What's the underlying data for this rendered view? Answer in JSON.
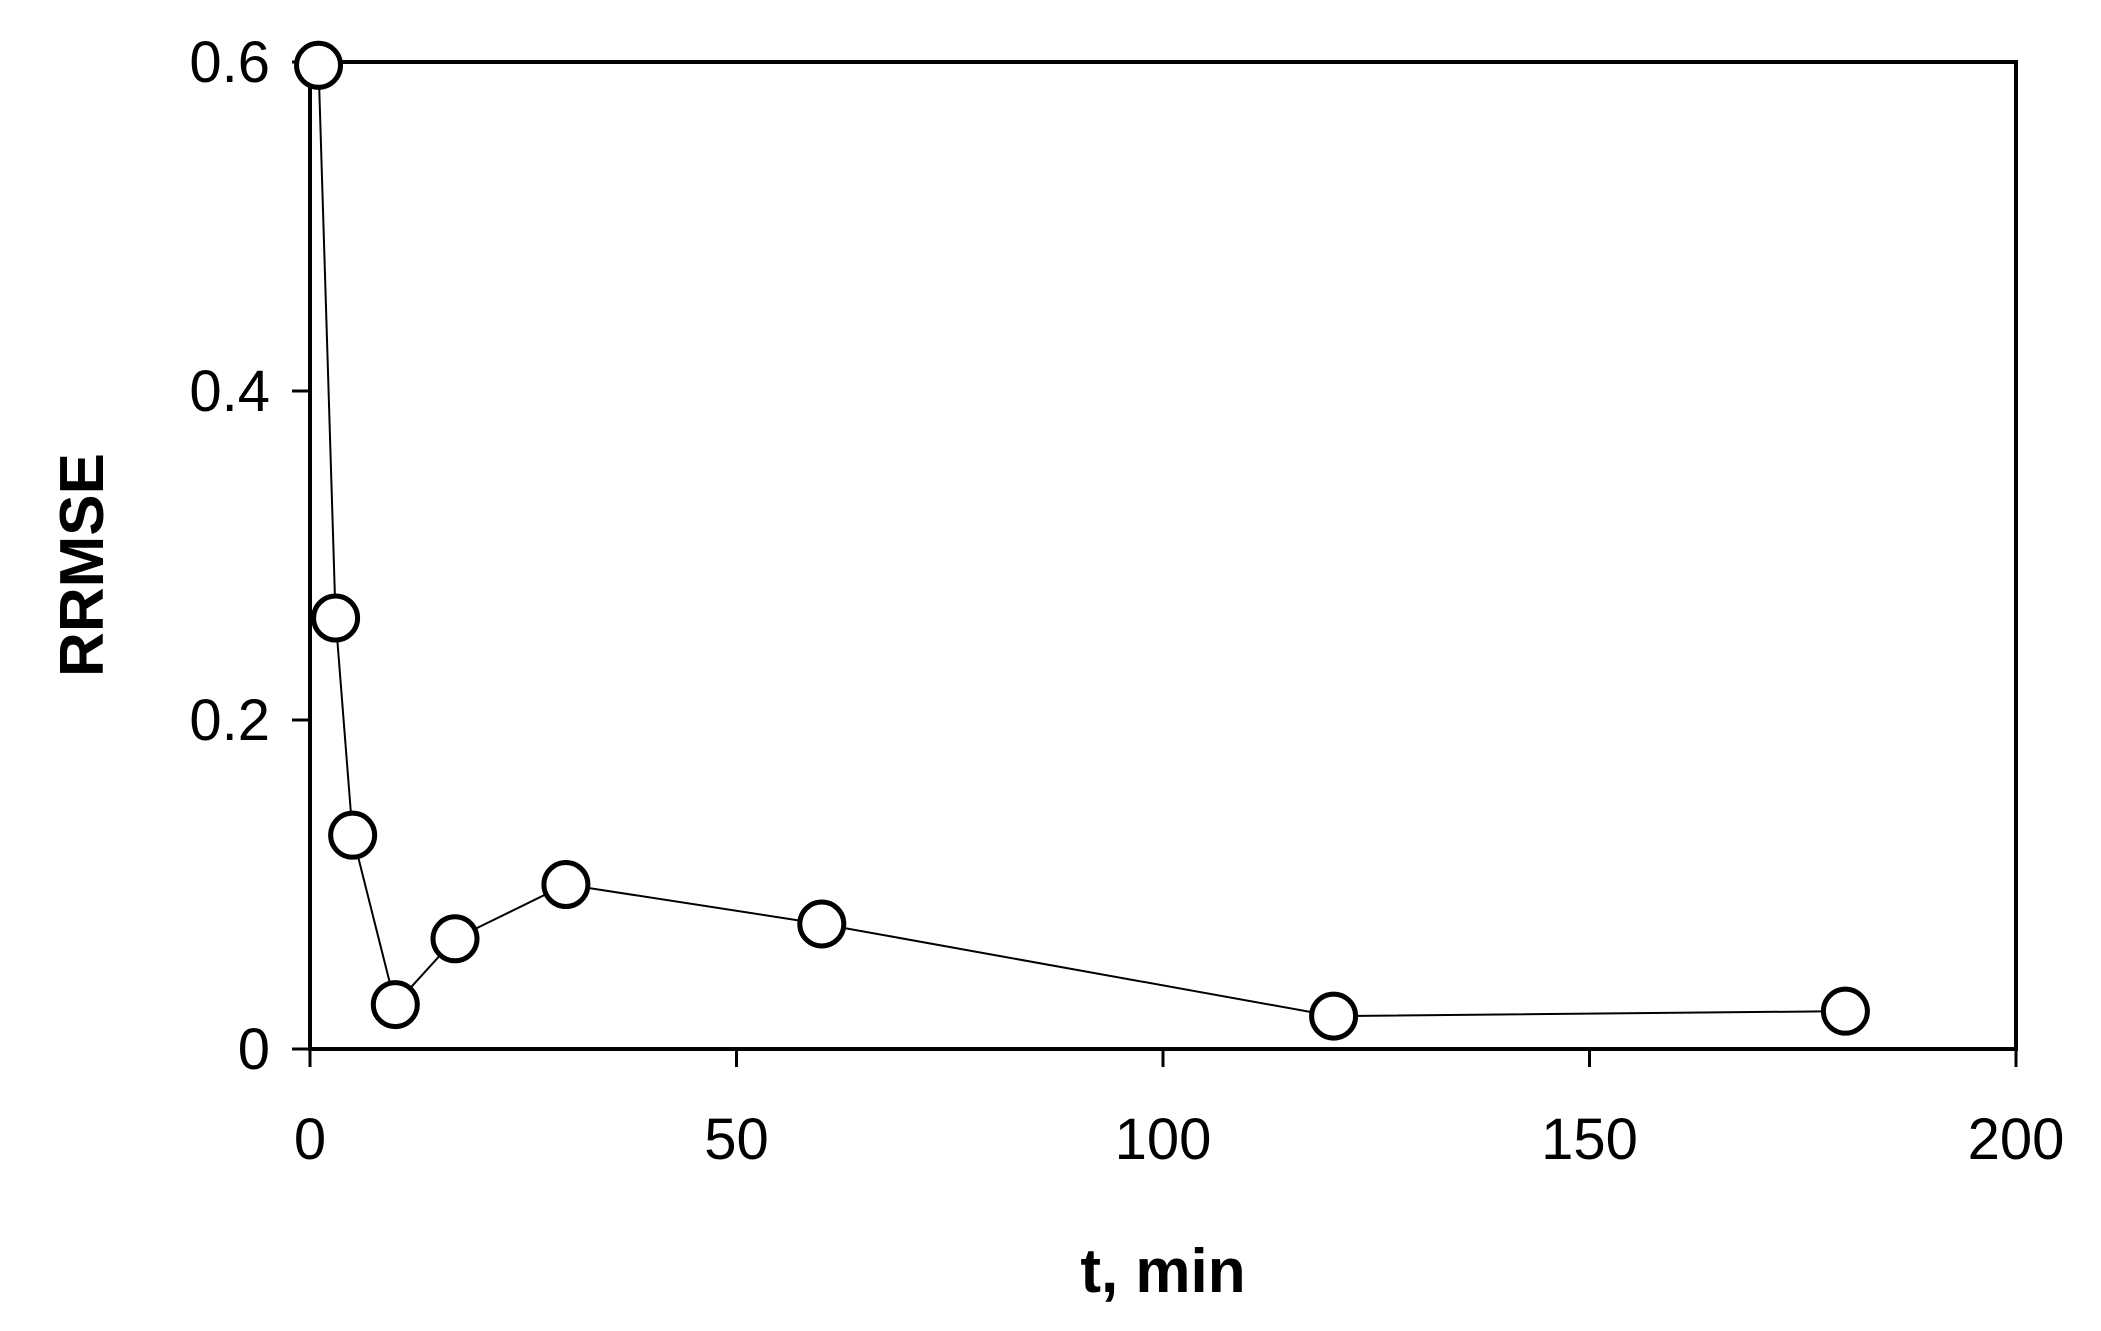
{
  "chart_data": {
    "type": "scatter",
    "title": "",
    "xlabel": "t, min",
    "ylabel": "RRMSE",
    "xlim": [
      0,
      200
    ],
    "ylim": [
      0,
      0.6
    ],
    "x_ticks": [
      0,
      50,
      100,
      150,
      200
    ],
    "y_ticks": [
      0,
      0.2,
      0.4,
      0.6
    ],
    "x_tick_labels": [
      "0",
      "50",
      "100",
      "150",
      "200"
    ],
    "y_tick_labels": [
      "0",
      "0.2",
      "0.4",
      "0.6"
    ],
    "grid": false,
    "legend": "none",
    "marker": "open-circle",
    "line": "connected",
    "series": [
      {
        "x": [
          1,
          3,
          5,
          10,
          17,
          30,
          60,
          120,
          180
        ],
        "y": [
          0.598,
          0.262,
          0.13,
          0.027,
          0.067,
          0.1,
          0.076,
          0.02,
          0.023
        ]
      }
    ],
    "colors": {
      "line": "#000000",
      "marker_fill": "#ffffff",
      "marker_stroke": "#000000"
    }
  }
}
